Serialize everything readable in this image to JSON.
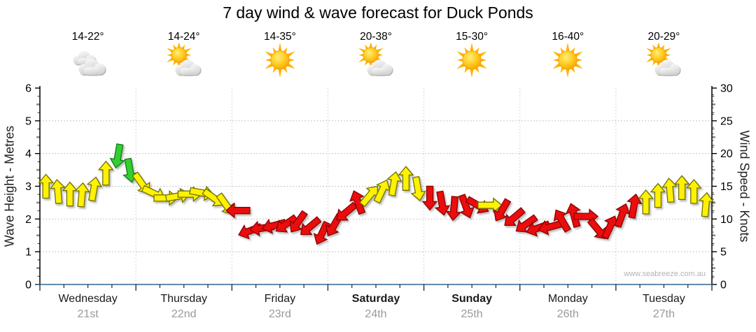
{
  "title": "7 day wind & wave forecast for Duck Ponds",
  "watermark": "www.seabreeze.com.au",
  "axes": {
    "left_label": "Wave Height - Metres",
    "right_label": "Wind Speed - Knots",
    "wave_ticks": [
      0,
      1,
      2,
      3,
      4,
      5,
      6
    ],
    "wind_ticks": [
      0,
      5,
      10,
      15,
      20,
      25,
      30
    ]
  },
  "days": [
    {
      "name": "Wednesday",
      "date": "21st",
      "temp": "14-22°",
      "icon": "cloudy",
      "bold": false
    },
    {
      "name": "Thursday",
      "date": "22nd",
      "temp": "14-24°",
      "icon": "partly-cloudy",
      "bold": false
    },
    {
      "name": "Friday",
      "date": "23rd",
      "temp": "14-35°",
      "icon": "sunny",
      "bold": false
    },
    {
      "name": "Saturday",
      "date": "24th",
      "temp": "20-38°",
      "icon": "partly-cloudy",
      "bold": true
    },
    {
      "name": "Sunday",
      "date": "25th",
      "temp": "15-30°",
      "icon": "sunny",
      "bold": true
    },
    {
      "name": "Monday",
      "date": "26th",
      "temp": "16-40°",
      "icon": "sunny",
      "bold": false
    },
    {
      "name": "Tuesday",
      "date": "27th",
      "temp": "20-29°",
      "icon": "partly-cloudy",
      "bold": false
    }
  ],
  "chart_data": {
    "type": "wind-arrow-timeseries",
    "title": "7 day wind & wave forecast for Duck Ponds",
    "categories": [
      "Wednesday 21st",
      "Thursday 22nd",
      "Friday 23rd",
      "Saturday 24th",
      "Sunday 25th",
      "Monday 26th",
      "Tuesday 27th"
    ],
    "slots_per_day": 8,
    "y_left": {
      "label": "Wave Height - Metres",
      "range": [
        0,
        6
      ],
      "gridlines": [
        1,
        2,
        3,
        4,
        5
      ]
    },
    "y_right": {
      "label": "Wind Speed - Knots",
      "range": [
        0,
        30
      ],
      "gridlines": [
        5,
        10,
        15,
        20,
        25
      ]
    },
    "color_map": {
      "Y": {
        "fill": "#FFF200",
        "stroke": "#6F6F00"
      },
      "R": {
        "fill": "#EB1010",
        "stroke": "#8A0000"
      },
      "G": {
        "fill": "#33CF33",
        "stroke": "#157A15"
      }
    },
    "dir_note": "degrees clockwise, 0 = arrow pointing up",
    "arrows": [
      {
        "kn": 15.0,
        "dir": 0,
        "c": "Y"
      },
      {
        "kn": 14.2,
        "dir": 355,
        "c": "Y"
      },
      {
        "kn": 13.8,
        "dir": 0,
        "c": "Y"
      },
      {
        "kn": 13.7,
        "dir": 5,
        "c": "Y"
      },
      {
        "kn": 14.6,
        "dir": 10,
        "c": "Y"
      },
      {
        "kn": 17.0,
        "dir": 0,
        "c": "Y"
      },
      {
        "kn": 19.6,
        "dir": 190,
        "c": "G"
      },
      {
        "kn": 17.4,
        "dir": 170,
        "c": "G"
      },
      {
        "kn": 15.4,
        "dir": 145,
        "c": "Y"
      },
      {
        "kn": 13.9,
        "dir": 115,
        "c": "Y"
      },
      {
        "kn": 13.2,
        "dir": 90,
        "c": "Y"
      },
      {
        "kn": 13.5,
        "dir": 80,
        "c": "Y"
      },
      {
        "kn": 13.8,
        "dir": 90,
        "c": "Y"
      },
      {
        "kn": 14.0,
        "dir": 100,
        "c": "Y"
      },
      {
        "kn": 13.2,
        "dir": 125,
        "c": "Y"
      },
      {
        "kn": 12.2,
        "dir": 145,
        "c": "Y"
      },
      {
        "kn": 11.3,
        "dir": 270,
        "c": "R"
      },
      {
        "kn": 8.2,
        "dir": 250,
        "c": "R"
      },
      {
        "kn": 8.6,
        "dir": 262,
        "c": "R"
      },
      {
        "kn": 9.0,
        "dir": 255,
        "c": "R"
      },
      {
        "kn": 9.2,
        "dir": 235,
        "c": "R"
      },
      {
        "kn": 9.5,
        "dir": 215,
        "c": "R"
      },
      {
        "kn": 8.8,
        "dir": 230,
        "c": "R"
      },
      {
        "kn": 7.8,
        "dir": 205,
        "c": "R"
      },
      {
        "kn": 9.0,
        "dir": 210,
        "c": "R"
      },
      {
        "kn": 11.0,
        "dir": 230,
        "c": "R"
      },
      {
        "kn": 12.6,
        "dir": 340,
        "c": "R"
      },
      {
        "kn": 13.6,
        "dir": 40,
        "c": "Y"
      },
      {
        "kn": 14.3,
        "dir": 25,
        "c": "Y"
      },
      {
        "kn": 15.4,
        "dir": 10,
        "c": "Y"
      },
      {
        "kn": 16.2,
        "dir": 0,
        "c": "Y"
      },
      {
        "kn": 14.6,
        "dir": 170,
        "c": "Y"
      },
      {
        "kn": 13.2,
        "dir": 180,
        "c": "R"
      },
      {
        "kn": 12.4,
        "dir": 170,
        "c": "R"
      },
      {
        "kn": 11.6,
        "dir": 185,
        "c": "R"
      },
      {
        "kn": 11.9,
        "dir": 160,
        "c": "R"
      },
      {
        "kn": 12.1,
        "dir": 120,
        "c": "R"
      },
      {
        "kn": 12.1,
        "dir": 90,
        "c": "Y"
      },
      {
        "kn": 11.3,
        "dir": 210,
        "c": "R"
      },
      {
        "kn": 10.2,
        "dir": 230,
        "c": "R"
      },
      {
        "kn": 9.2,
        "dir": 235,
        "c": "R"
      },
      {
        "kn": 8.6,
        "dir": 250,
        "c": "R"
      },
      {
        "kn": 8.8,
        "dir": 255,
        "c": "R"
      },
      {
        "kn": 9.8,
        "dir": 330,
        "c": "R"
      },
      {
        "kn": 10.6,
        "dir": 345,
        "c": "R"
      },
      {
        "kn": 10.4,
        "dir": 90,
        "c": "R"
      },
      {
        "kn": 8.4,
        "dir": 140,
        "c": "R"
      },
      {
        "kn": 8.8,
        "dir": 25,
        "c": "R"
      },
      {
        "kn": 10.6,
        "dir": 20,
        "c": "R"
      },
      {
        "kn": 12.0,
        "dir": 10,
        "c": "R"
      },
      {
        "kn": 12.6,
        "dir": 0,
        "c": "Y"
      },
      {
        "kn": 13.6,
        "dir": 0,
        "c": "Y"
      },
      {
        "kn": 14.4,
        "dir": 355,
        "c": "Y"
      },
      {
        "kn": 14.8,
        "dir": 0,
        "c": "Y"
      },
      {
        "kn": 14.2,
        "dir": 0,
        "c": "Y"
      },
      {
        "kn": 12.2,
        "dir": 5,
        "c": "Y"
      }
    ]
  }
}
